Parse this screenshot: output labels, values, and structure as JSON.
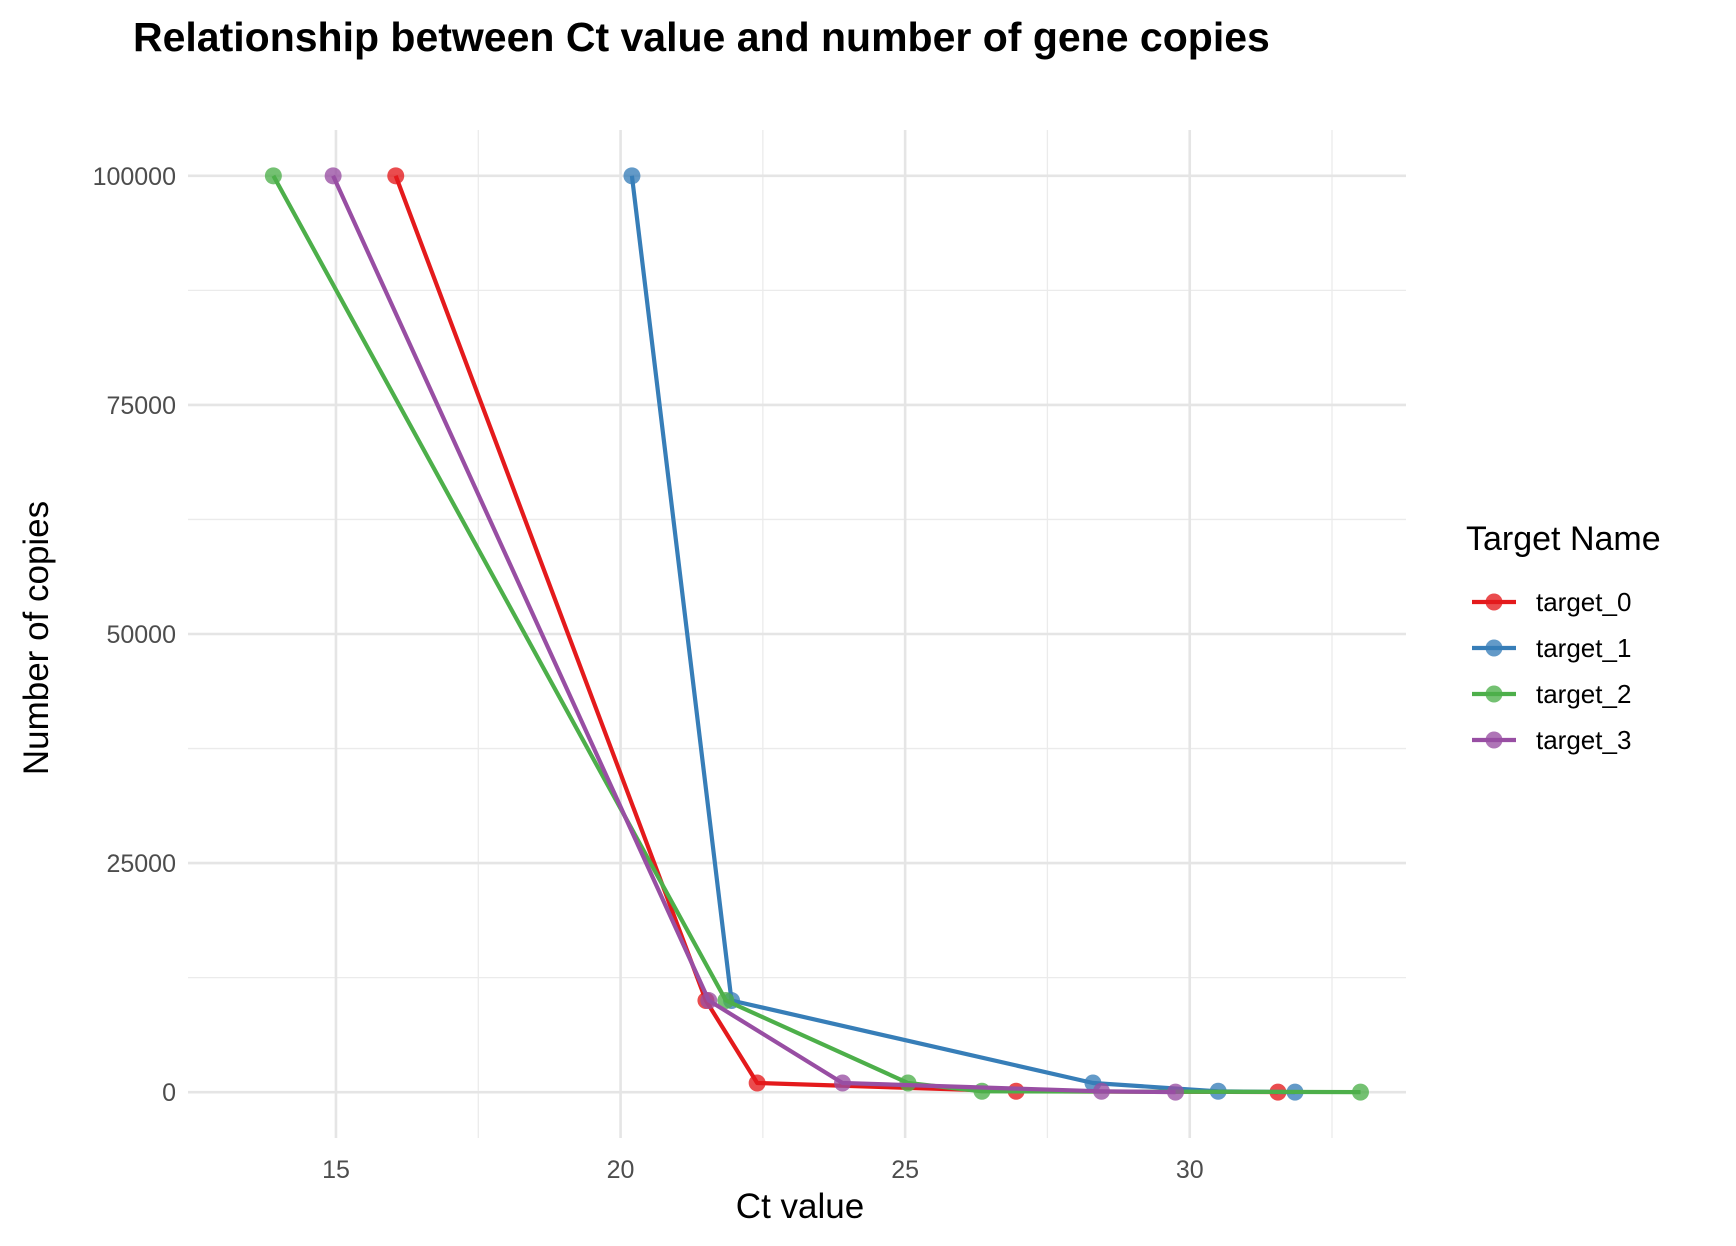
{
  "chart_data": {
    "type": "line",
    "title": "Relationship between Ct value and number of gene copies",
    "xlabel": "Ct value",
    "ylabel": "Number of copies",
    "xlim": [
      12.4,
      33.8
    ],
    "ylim": [
      -5000,
      105000
    ],
    "x_ticks": [
      15,
      20,
      25,
      30
    ],
    "x_tick_labels": [
      "15",
      "20",
      "25",
      "30"
    ],
    "y_ticks": [
      0,
      25000,
      50000,
      75000,
      100000
    ],
    "y_tick_labels": [
      "0",
      "25000",
      "50000",
      "75000",
      "100000"
    ],
    "grid": true,
    "legend": {
      "title": "Target Name",
      "position": "right"
    },
    "series": [
      {
        "name": "target_0",
        "color": "#e41a1c",
        "points": [
          [
            16.05,
            100000
          ],
          [
            21.5,
            10000
          ],
          [
            22.4,
            1000
          ],
          [
            26.95,
            100
          ],
          [
            31.55,
            10
          ]
        ]
      },
      {
        "name": "target_1",
        "color": "#377eb8",
        "points": [
          [
            20.2,
            100000
          ],
          [
            21.95,
            10000
          ],
          [
            28.3,
            1000
          ],
          [
            30.5,
            100
          ],
          [
            31.85,
            10
          ]
        ]
      },
      {
        "name": "target_2",
        "color": "#4daf4a",
        "points": [
          [
            13.9,
            100000
          ],
          [
            21.85,
            10000
          ],
          [
            25.05,
            1000
          ],
          [
            26.35,
            100
          ],
          [
            33.0,
            10
          ]
        ]
      },
      {
        "name": "target_3",
        "color": "#984ea3",
        "points": [
          [
            14.95,
            100000
          ],
          [
            21.55,
            10000
          ],
          [
            23.9,
            1000
          ],
          [
            28.45,
            100
          ],
          [
            29.75,
            10
          ]
        ]
      }
    ]
  }
}
